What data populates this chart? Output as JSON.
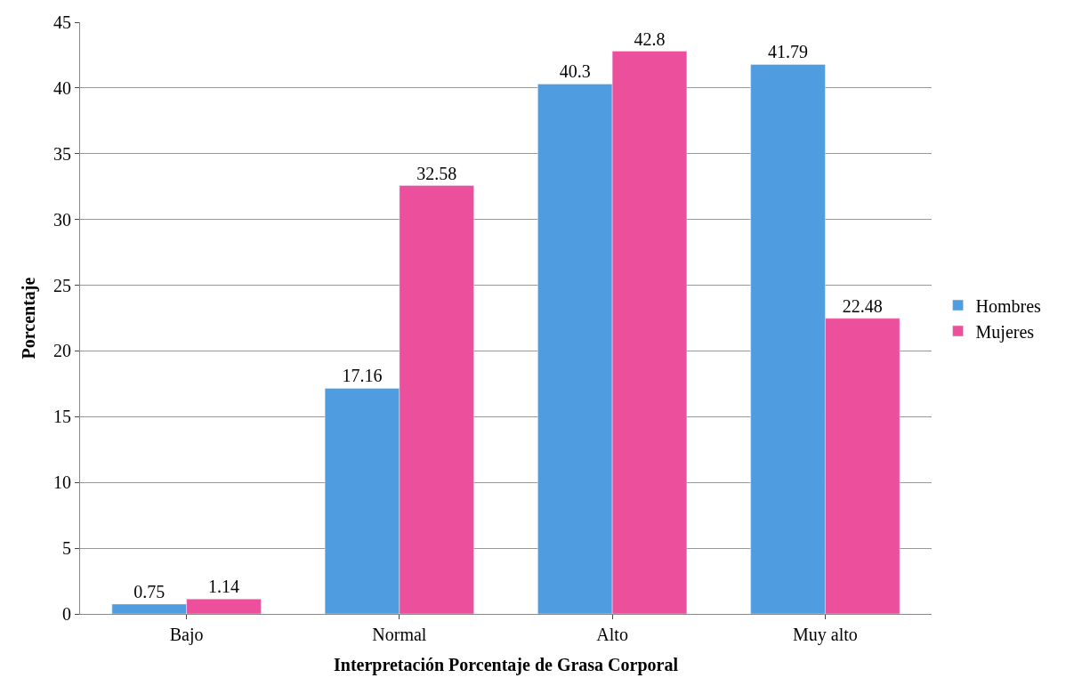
{
  "chart_data": {
    "type": "bar",
    "xlabel": "Interpretación Porcentaje de Grasa Corporal",
    "ylabel": "Porcentaje",
    "categories": [
      "Bajo",
      "Normal",
      "Alto",
      "Muy alto"
    ],
    "series": [
      {
        "name": "Hombres",
        "color": "#4f9de0",
        "values": [
          0.75,
          17.16,
          40.3,
          41.79
        ]
      },
      {
        "name": "Mujeres",
        "color": "#ec4f9c",
        "values": [
          1.14,
          32.58,
          42.8,
          22.48
        ]
      }
    ],
    "ylim": [
      0,
      45
    ],
    "yticks": [
      0,
      5,
      10,
      15,
      20,
      25,
      30,
      35,
      40,
      45
    ],
    "grid": "y",
    "legend": "right",
    "data_labels": true
  }
}
